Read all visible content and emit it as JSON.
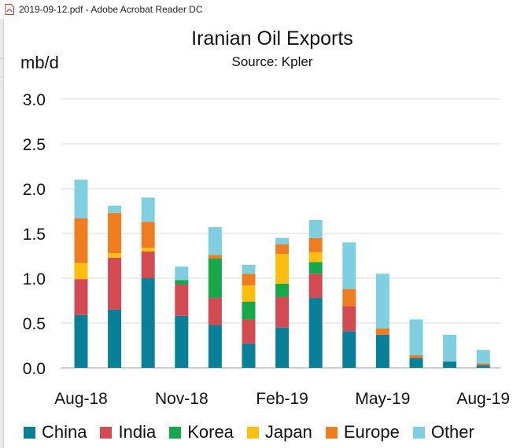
{
  "window": {
    "title": "2019-09-12.pdf - Adobe Acrobat Reader DC",
    "icon": "pdf-file-icon"
  },
  "colors": {
    "China": "#0a7f98",
    "India": "#d34b52",
    "Korea": "#16a84a",
    "Japan": "#fdbf0f",
    "Europe": "#ee7d21",
    "Other": "#7fcfe0"
  },
  "chart_data": {
    "type": "bar",
    "stacked": true,
    "title": "Iranian Oil Exports",
    "subtitle": "Source: Kpler",
    "ylabel": "mb/d",
    "ylim": [
      0,
      3.0
    ],
    "yticks": [
      "0.0",
      "0.5",
      "1.0",
      "1.5",
      "2.0",
      "2.5",
      "3.0"
    ],
    "grid": true,
    "legend_position": "bottom",
    "x_tick_labels": [
      {
        "index": 0,
        "label": "Aug-18"
      },
      {
        "index": 3,
        "label": "Nov-18"
      },
      {
        "index": 6,
        "label": "Feb-19"
      },
      {
        "index": 9,
        "label": "May-19"
      },
      {
        "index": 12,
        "label": "Aug-19"
      }
    ],
    "categories": [
      "Aug-18",
      "Sep-18",
      "Oct-18",
      "Nov-18",
      "Dec-18",
      "Jan-19",
      "Feb-19",
      "Mar-19",
      "Apr-19",
      "May-19",
      "Jun-19",
      "Jul-19",
      "Aug-19"
    ],
    "series": [
      {
        "name": "China",
        "values": [
          0.59,
          0.65,
          1.0,
          0.58,
          0.48,
          0.27,
          0.45,
          0.78,
          0.41,
          0.37,
          0.11,
          0.07,
          0.03
        ]
      },
      {
        "name": "India",
        "values": [
          0.4,
          0.58,
          0.3,
          0.35,
          0.3,
          0.27,
          0.34,
          0.27,
          0.28,
          0.0,
          0.0,
          0.0,
          0.0
        ]
      },
      {
        "name": "Korea",
        "values": [
          0.0,
          0.0,
          0.0,
          0.05,
          0.44,
          0.2,
          0.15,
          0.13,
          0.0,
          0.0,
          0.0,
          0.0,
          0.0
        ]
      },
      {
        "name": "Japan",
        "values": [
          0.18,
          0.05,
          0.04,
          0.0,
          0.0,
          0.18,
          0.33,
          0.11,
          0.0,
          0.0,
          0.0,
          0.0,
          0.0
        ]
      },
      {
        "name": "Europe",
        "values": [
          0.5,
          0.45,
          0.29,
          0.0,
          0.04,
          0.13,
          0.11,
          0.16,
          0.19,
          0.07,
          0.03,
          0.0,
          0.02
        ]
      },
      {
        "name": "Other",
        "values": [
          0.43,
          0.08,
          0.27,
          0.15,
          0.31,
          0.1,
          0.07,
          0.2,
          0.52,
          0.61,
          0.4,
          0.3,
          0.15
        ]
      }
    ]
  }
}
